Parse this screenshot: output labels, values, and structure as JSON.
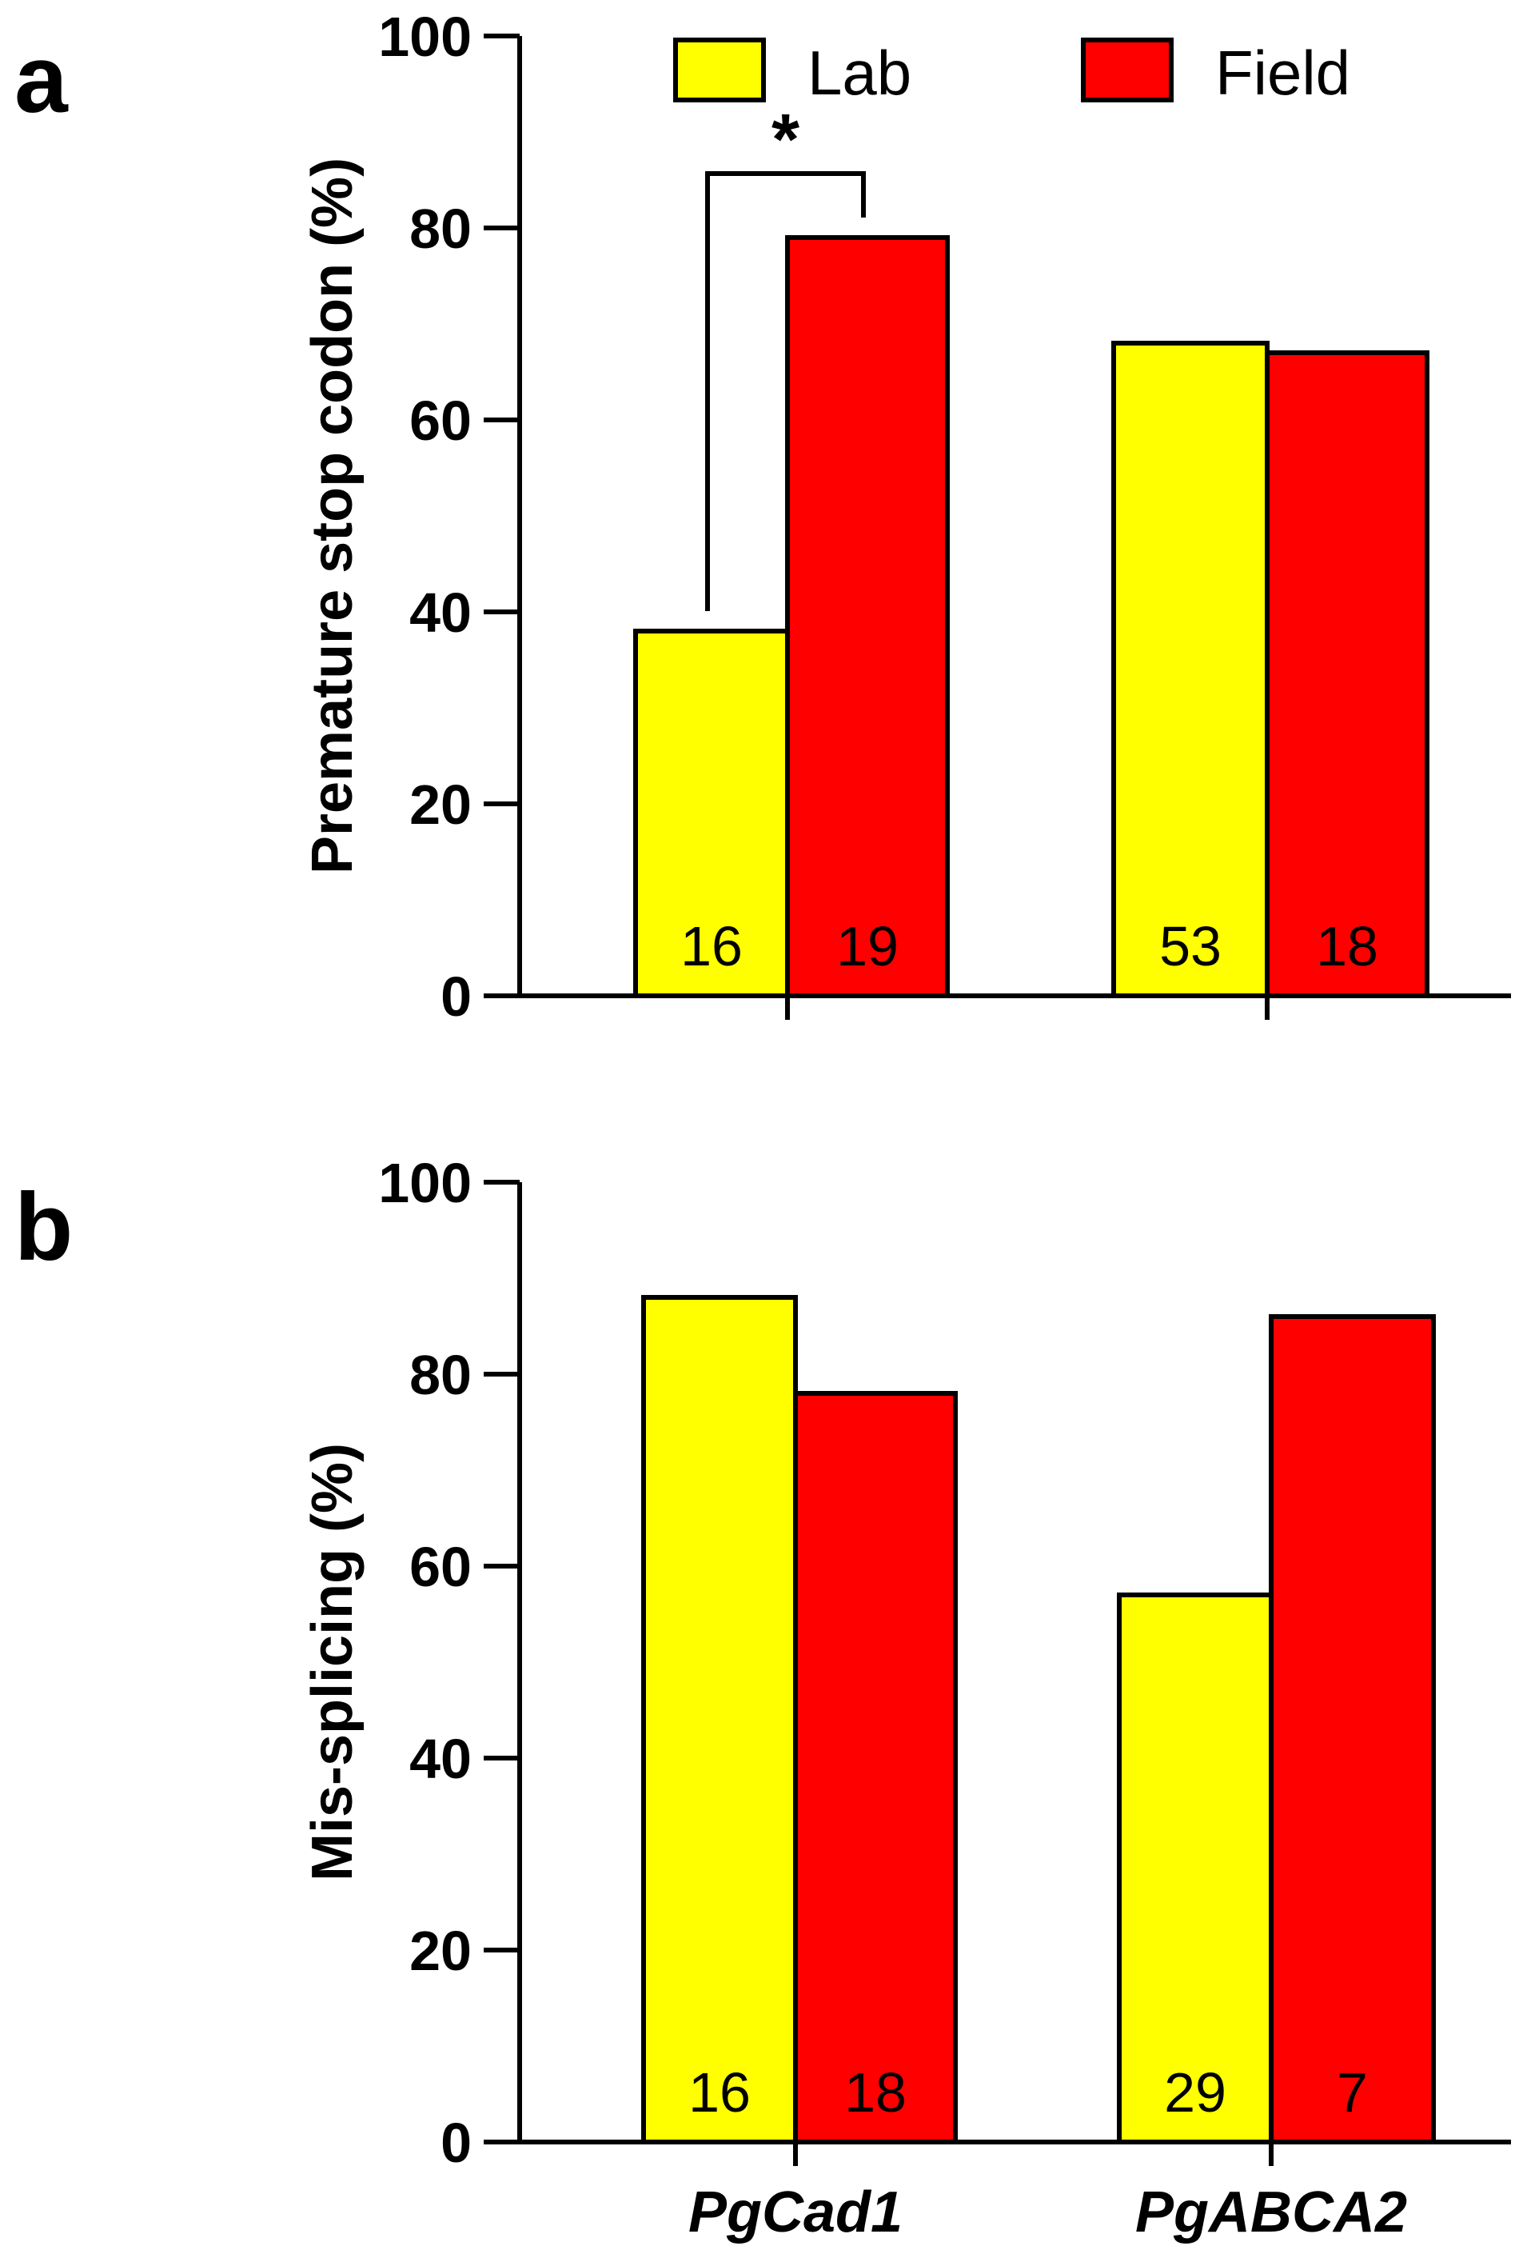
{
  "colors": {
    "lab": "#ffff00",
    "field": "#ff0000",
    "axis": "#000000"
  },
  "legend": [
    {
      "label": "Lab",
      "color": "#ffff00"
    },
    {
      "label": "Field",
      "color": "#ff0000"
    }
  ],
  "chart_data": [
    {
      "type": "bar",
      "panel_label": "a",
      "title": "",
      "xlabel": "",
      "ylabel": "Premature stop codon (%)",
      "ylim": [
        0,
        100
      ],
      "yticks": [
        "0",
        "20",
        "40",
        "60",
        "80",
        "100"
      ],
      "categories": [
        "PgCad1",
        "PgABCA2"
      ],
      "show_category_labels": false,
      "series": [
        {
          "name": "Lab",
          "values": [
            38,
            68
          ],
          "counts": [
            "16",
            "53"
          ]
        },
        {
          "name": "Field",
          "values": [
            79,
            67
          ],
          "counts": [
            "19",
            "18"
          ]
        }
      ],
      "annotations": [
        {
          "text": "*",
          "category": "PgCad1",
          "between": [
            "Lab",
            "Field"
          ]
        }
      ],
      "legend_position": "top"
    },
    {
      "type": "bar",
      "panel_label": "b",
      "title": "",
      "xlabel": "",
      "ylabel": "Mis-splicing (%)",
      "ylim": [
        0,
        100
      ],
      "yticks": [
        "0",
        "20",
        "40",
        "60",
        "80",
        "100"
      ],
      "categories": [
        "PgCad1",
        "PgABCA2"
      ],
      "show_category_labels": true,
      "series": [
        {
          "name": "Lab",
          "values": [
            88,
            57
          ],
          "counts": [
            "16",
            "29"
          ]
        },
        {
          "name": "Field",
          "values": [
            78,
            86
          ],
          "counts": [
            "18",
            "7"
          ]
        }
      ],
      "annotations": [],
      "legend_position": "none"
    }
  ]
}
